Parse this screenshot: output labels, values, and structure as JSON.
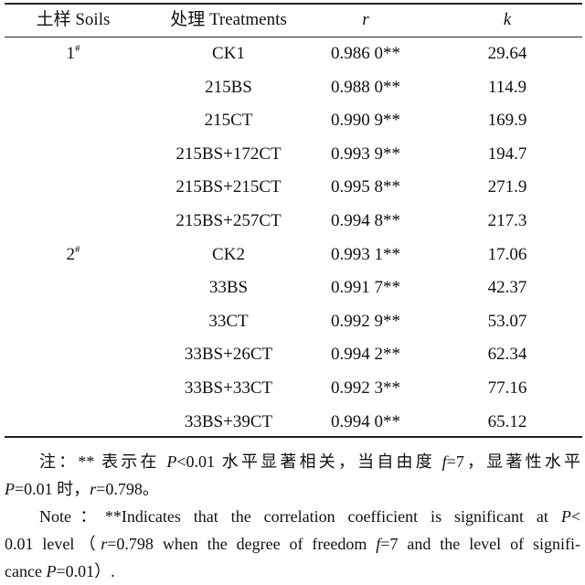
{
  "table": {
    "headers": {
      "soils": "土样 Soils",
      "treatments": "处理 Treatments",
      "r": "r",
      "k": "k"
    },
    "rows": [
      {
        "soil": "1",
        "soil_mark": "#",
        "treatment": "CK1",
        "r": "0.986 0**",
        "k": "29.64"
      },
      {
        "soil": "",
        "soil_mark": "",
        "treatment": "215BS",
        "r": "0.988 0**",
        "k": "114.9"
      },
      {
        "soil": "",
        "soil_mark": "",
        "treatment": "215CT",
        "r": "0.990 9**",
        "k": "169.9"
      },
      {
        "soil": "",
        "soil_mark": "",
        "treatment": "215BS+172CT",
        "r": "0.993 9**",
        "k": "194.7"
      },
      {
        "soil": "",
        "soil_mark": "",
        "treatment": "215BS+215CT",
        "r": "0.995 8**",
        "k": "271.9"
      },
      {
        "soil": "",
        "soil_mark": "",
        "treatment": "215BS+257CT",
        "r": "0.994 8**",
        "k": "217.3"
      },
      {
        "soil": "2",
        "soil_mark": "#",
        "treatment": "CK2",
        "r": "0.993 1**",
        "k": "17.06"
      },
      {
        "soil": "",
        "soil_mark": "",
        "treatment": "33BS",
        "r": "0.991 7**",
        "k": "42.37"
      },
      {
        "soil": "",
        "soil_mark": "",
        "treatment": "33CT",
        "r": "0.992 9**",
        "k": "53.07"
      },
      {
        "soil": "",
        "soil_mark": "",
        "treatment": "33BS+26CT",
        "r": "0.994 2**",
        "k": "62.34"
      },
      {
        "soil": "",
        "soil_mark": "",
        "treatment": "33BS+33CT",
        "r": "0.992 3**",
        "k": "77.16"
      },
      {
        "soil": "",
        "soil_mark": "",
        "treatment": "33BS+39CT",
        "r": "0.994 0**",
        "k": "65.12"
      }
    ]
  },
  "notes": {
    "zh": {
      "line1_a": "注：** 表示在 ",
      "line1_P": "P",
      "line1_b": "<0.01 水平显著相关，当自由度 ",
      "line1_f": "f",
      "line1_c": "=7，显著性水平",
      "line2_P": "P",
      "line2_a": "=0.01 时，",
      "line2_r": "r",
      "line2_b": "=0.798。"
    },
    "en": {
      "line1_a": "Note：**Indicates that the correlation coefficient is significant at ",
      "line1_P": "P",
      "line1_b": "<",
      "line2_a": "0.01 level（",
      "line2_r": "r",
      "line2_b": "=0.798 when the degree of freedom ",
      "line2_f": "f",
      "line2_c": "=7 and the level of signifi-",
      "line3_a": "cance ",
      "line3_P": "P",
      "line3_b": "=0.01）."
    }
  }
}
